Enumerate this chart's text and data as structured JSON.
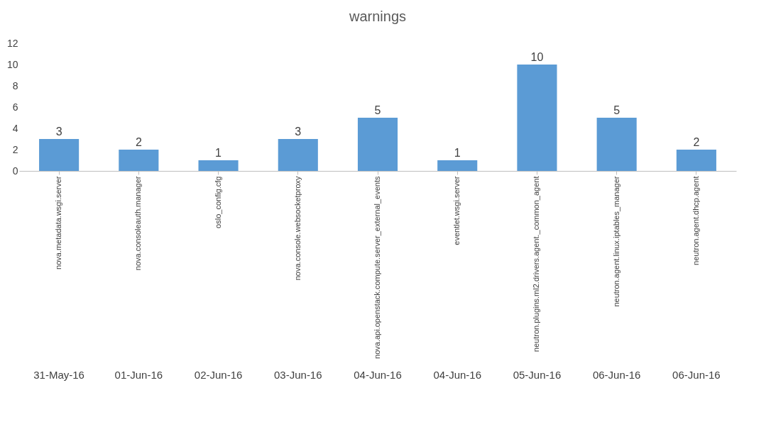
{
  "chart_data": {
    "type": "bar",
    "title": "warnings",
    "categories": [
      "nova.metadata.wsgi.server",
      "nova.consoleauth.manager",
      "oslo_config.cfg",
      "nova.console.websocketproxy",
      "nova.api.openstack.compute.server_external_events",
      "eventlet.wsgi.server",
      "neutron.plugins.ml2.drivers.agent._common_agent",
      "neutron.agent.linux.iptables_manager",
      "neutron.agent.dhcp.agent"
    ],
    "values": [
      3,
      2,
      1,
      3,
      5,
      1,
      10,
      5,
      2
    ],
    "color": "#5b9bd5",
    "ylim": [
      0,
      12
    ],
    "yticks": [
      0,
      2,
      4,
      6,
      8,
      10,
      12
    ],
    "grid": false,
    "data_labels": true,
    "annotations": [
      "31-May-16",
      "01-Jun-16",
      "02-Jun-16",
      "03-Jun-16",
      "04-Jun-16",
      "04-Jun-16",
      "05-Jun-16",
      "06-Jun-16",
      "06-Jun-16"
    ]
  }
}
